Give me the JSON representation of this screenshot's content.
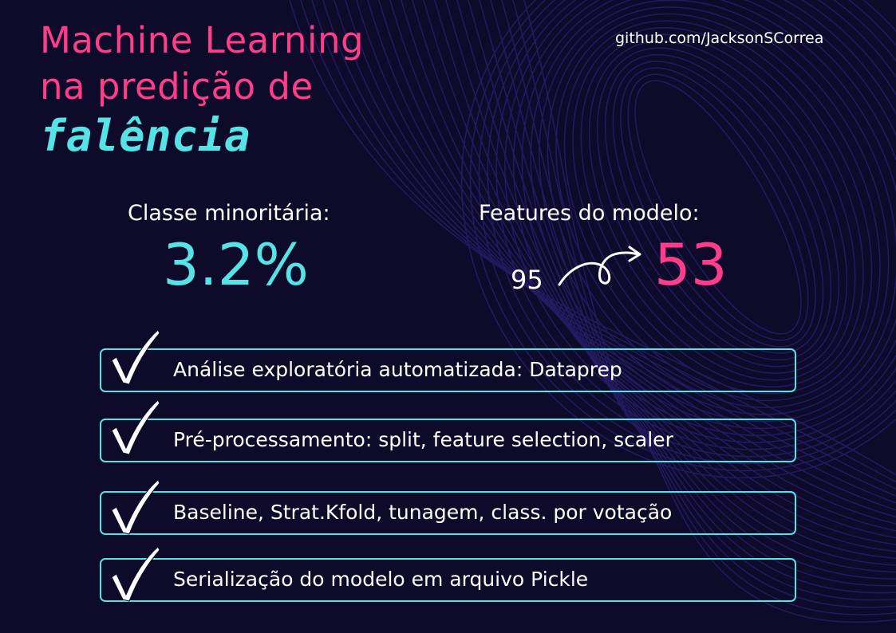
{
  "title": {
    "line1": "Machine Learning",
    "line2": "na predição de",
    "keyword": "falência"
  },
  "link": "github.com/JacksonSCorrea",
  "stats": {
    "minority": {
      "label": "Classe minoritária:",
      "value": "3.2%"
    },
    "features": {
      "label": "Features do modelo:",
      "from": "95",
      "to": "53"
    }
  },
  "items": [
    {
      "label": "Análise exploratória automatizada: Dataprep"
    },
    {
      "label": "Pré-processamento: split, feature selection, scaler"
    },
    {
      "label": "Baseline, Strat.Kfold, tunagem, class. por votação"
    },
    {
      "label": "Serialização do modelo em arquivo Pickle"
    }
  ],
  "colors": {
    "background": "#0e0a29",
    "pink": "#ff3d8b",
    "cyan": "#55e3e6"
  }
}
